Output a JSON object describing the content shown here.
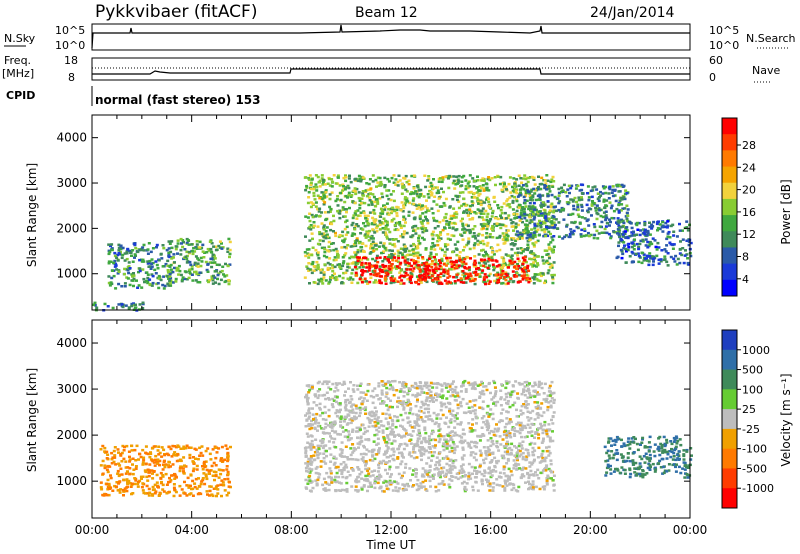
{
  "header": {
    "title": "Pykkvibaer (fitACF)",
    "beam": "Beam 12",
    "date": "24/Jan/2014"
  },
  "housekeeping": {
    "nsky_label": "N.Sky",
    "nsky_ticks": [
      "10^5",
      "10^0"
    ],
    "nsearch_label": "N.Search",
    "nsearch_ticks": [
      "10^5",
      "10^0"
    ],
    "freq_label": "Freq.",
    "freq_unit": "[MHz]",
    "freq_ticks": [
      "18",
      "8"
    ],
    "nave_label": "Nave",
    "nave_ticks": [
      "60",
      "0"
    ],
    "cpid_label": "CPID",
    "cpid_text": "normal (fast stereo) 153"
  },
  "colorbars": {
    "power_title": "Power [dB]",
    "power_ticks": [
      "28",
      "24",
      "20",
      "16",
      "12",
      "8",
      "4"
    ],
    "power_colors": [
      "#ff0000",
      "#ff3c00",
      "#ff7a00",
      "#f5a400",
      "#f2d23c",
      "#88cc33",
      "#3fa83f",
      "#3f8a5a",
      "#2a5aa8",
      "#1a3ad8",
      "#0000ff"
    ],
    "velocity_title": "Velocity [m s⁻¹]",
    "velocity_ticks": [
      "1000",
      "500",
      "100",
      "25",
      "-25",
      "-100",
      "-500",
      "-1000"
    ],
    "velocity_colors": [
      "#1f3fbf",
      "#2f6fa8",
      "#3f8a5a",
      "#66cc33",
      "#bdbdbd",
      "#f0a000",
      "#ff7a00",
      "#ff3c00",
      "#ff0000"
    ]
  },
  "chart_data": [
    {
      "type": "heatmap",
      "panel": "power",
      "ylabel": "Slant Range [km]",
      "xlim": [
        0,
        24
      ],
      "ylim": [
        200,
        4500
      ],
      "y_ticks": [
        "1000",
        "2000",
        "3000",
        "4000"
      ],
      "colorbar": "Power [dB]",
      "regions": [
        {
          "t0": 0.0,
          "t1": 2.0,
          "r0": 200,
          "r1": 400,
          "value": 10
        },
        {
          "t0": 0.6,
          "t1": 3.2,
          "r0": 700,
          "r1": 1700,
          "value": 10
        },
        {
          "t0": 3.0,
          "t1": 5.5,
          "r0": 800,
          "r1": 1800,
          "value": 12
        },
        {
          "t0": 8.5,
          "t1": 18.5,
          "r0": 800,
          "r1": 3200,
          "value": 14
        },
        {
          "t0": 10.5,
          "t1": 17.5,
          "r0": 800,
          "r1": 1400,
          "value": 28
        },
        {
          "t0": 17.0,
          "t1": 21.5,
          "r0": 1800,
          "r1": 3000,
          "value": 10
        },
        {
          "t0": 21.0,
          "t1": 24.0,
          "r0": 1200,
          "r1": 2200,
          "value": 8
        }
      ]
    },
    {
      "type": "heatmap",
      "panel": "velocity",
      "xlabel": "Time UT",
      "ylabel": "Slant Range [km]",
      "xlim": [
        0,
        24
      ],
      "ylim": [
        200,
        4500
      ],
      "x_ticks": [
        "00:00",
        "04:00",
        "08:00",
        "12:00",
        "16:00",
        "20:00",
        "00:00"
      ],
      "y_ticks": [
        "1000",
        "2000",
        "3000",
        "4000"
      ],
      "colorbar": "Velocity [m s⁻¹]",
      "regions": [
        {
          "t0": 0.3,
          "t1": 5.5,
          "r0": 700,
          "r1": 1800,
          "value": -100
        },
        {
          "t0": 8.5,
          "t1": 18.5,
          "r0": 800,
          "r1": 3200,
          "value": 0
        },
        {
          "t0": 20.5,
          "t1": 24.0,
          "r0": 1100,
          "r1": 2000,
          "value": 500
        }
      ]
    }
  ]
}
